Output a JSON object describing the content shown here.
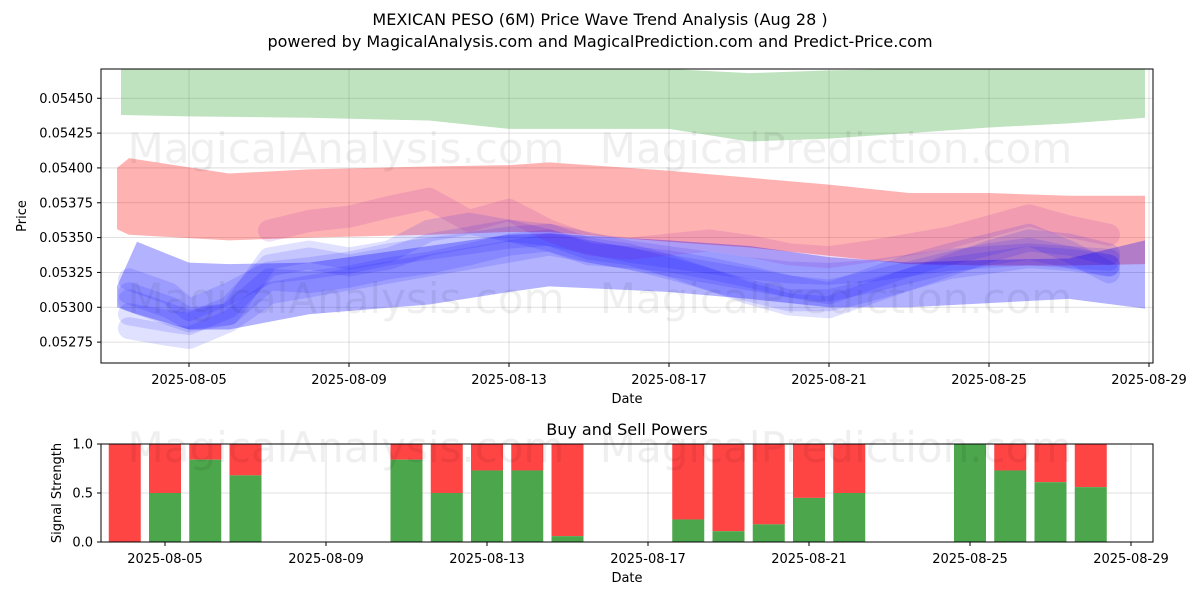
{
  "chart_data": [
    {
      "type": "area",
      "title": "MEXICAN PESO (6M) Price Wave Trend Analysis (Aug 28 )",
      "subtitle": "powered by MagicalAnalysis.com and MagicalPrediction.com and Predict-Price.com",
      "xlabel": "Date",
      "ylabel": "Price",
      "x_ticks": [
        "2025-08-05",
        "2025-08-09",
        "2025-08-13",
        "2025-08-17",
        "2025-08-21",
        "2025-08-25",
        "2025-08-29"
      ],
      "y_ticks": [
        "0.05275",
        "0.05300",
        "0.05325",
        "0.05350",
        "0.05375",
        "0.05400",
        "0.05425",
        "0.05450"
      ],
      "ylim": [
        0.0526,
        0.05471
      ],
      "x_start": "2025-08-03",
      "grid": true,
      "bands": [
        {
          "name": "upper band",
          "color": "#2ca02c",
          "x": [
            3.3,
            5,
            8,
            11,
            13,
            15,
            17,
            19,
            21,
            23,
            25,
            27,
            28.9
          ],
          "upper": [
            54.71,
            54.71,
            54.71,
            54.71,
            54.71,
            54.71,
            54.71,
            54.68,
            54.7,
            54.71,
            54.71,
            54.71,
            54.71
          ],
          "lower": [
            54.38,
            54.37,
            54.36,
            54.34,
            54.28,
            54.28,
            54.28,
            54.19,
            54.21,
            54.25,
            54.29,
            54.32,
            54.36
          ]
        },
        {
          "name": "middle band",
          "color": "#ff0000",
          "x": [
            3.2,
            3.5,
            6,
            8,
            11,
            13,
            14,
            17,
            19,
            21,
            23,
            25,
            27,
            28.9
          ],
          "upper": [
            54.0,
            54.07,
            53.96,
            53.99,
            54.01,
            54.02,
            54.04,
            53.98,
            53.93,
            53.88,
            53.82,
            53.82,
            53.8,
            53.8
          ],
          "lower": [
            53.56,
            53.52,
            53.48,
            53.5,
            53.52,
            53.54,
            53.54,
            53.47,
            53.43,
            53.37,
            53.31,
            53.3,
            53.3,
            53.31
          ]
        },
        {
          "name": "lower band",
          "color": "#0000ff",
          "x": [
            3.2,
            3.7,
            5,
            6,
            8,
            11,
            13,
            14,
            17,
            19,
            21,
            23,
            25,
            27,
            28.9
          ],
          "upper": [
            53.15,
            53.47,
            53.32,
            53.31,
            53.32,
            53.44,
            53.52,
            53.53,
            53.48,
            53.44,
            53.36,
            53.32,
            53.34,
            53.35,
            53.48
          ],
          "lower": [
            53.0,
            52.95,
            52.84,
            52.84,
            52.95,
            53.02,
            53.11,
            53.15,
            53.11,
            53.06,
            53.0,
            53.0,
            53.03,
            53.06,
            52.99
          ]
        }
      ],
      "waves": [
        {
          "color": "#0000ff",
          "x": [
            3.5,
            4.5,
            5,
            6,
            7,
            8,
            9,
            10,
            11,
            12,
            13,
            14,
            15,
            16,
            17,
            18,
            19,
            20,
            21,
            22,
            23,
            24,
            25,
            26,
            27,
            28
          ],
          "y": [
            53.05,
            52.95,
            52.9,
            52.95,
            53.2,
            53.18,
            53.22,
            53.28,
            53.32,
            53.38,
            53.45,
            53.48,
            53.38,
            53.36,
            53.33,
            53.28,
            53.22,
            53.15,
            53.12,
            53.18,
            53.25,
            53.32,
            53.38,
            53.42,
            53.36,
            53.3
          ]
        },
        {
          "color": "#0000ff",
          "x": [
            3.5,
            4.5,
            5,
            6,
            7,
            8,
            9,
            10,
            11,
            12,
            13,
            14,
            15,
            16,
            17,
            18,
            19,
            20,
            21,
            22,
            23,
            24,
            25,
            26,
            27,
            28
          ],
          "y": [
            53.1,
            53.0,
            52.92,
            52.95,
            53.35,
            53.4,
            53.35,
            53.4,
            53.55,
            53.6,
            53.55,
            53.48,
            53.4,
            53.35,
            53.3,
            53.25,
            53.2,
            53.15,
            53.1,
            53.2,
            53.3,
            53.38,
            53.45,
            53.52,
            53.4,
            53.25
          ]
        },
        {
          "color": "#0000ff",
          "x": [
            3.5,
            4.5,
            5,
            6,
            7,
            8,
            9,
            10,
            11,
            12,
            13,
            14,
            15,
            16,
            17,
            18,
            19,
            20,
            21,
            22,
            23,
            24,
            25,
            26,
            27,
            28
          ],
          "y": [
            52.95,
            52.9,
            52.88,
            53.0,
            53.3,
            53.35,
            53.3,
            53.35,
            53.45,
            53.5,
            53.55,
            53.52,
            53.42,
            53.38,
            53.3,
            53.2,
            53.1,
            53.02,
            53.0,
            53.1,
            53.2,
            53.3,
            53.4,
            53.48,
            53.45,
            53.38
          ]
        },
        {
          "color": "#0000ff",
          "x": [
            3.5,
            4.5,
            5,
            6,
            7,
            8,
            9,
            10,
            11,
            12,
            13,
            14,
            15,
            16,
            17,
            18,
            19,
            20,
            21,
            22,
            23,
            24,
            25,
            26,
            27,
            28
          ],
          "y": [
            53.2,
            53.1,
            52.98,
            53.1,
            53.25,
            53.28,
            53.32,
            53.38,
            53.42,
            53.46,
            53.5,
            53.52,
            53.46,
            53.4,
            53.36,
            53.32,
            53.28,
            53.25,
            53.24,
            53.26,
            53.3,
            53.34,
            53.36,
            53.38,
            53.36,
            53.34
          ]
        },
        {
          "color": "#0000ff",
          "x": [
            3.5,
            4.5,
            5,
            6,
            7,
            8,
            9,
            10,
            11,
            12,
            13,
            14,
            15,
            16,
            17,
            18,
            19,
            20,
            21,
            22,
            23,
            24,
            25,
            26,
            27,
            28
          ],
          "y": [
            52.85,
            52.8,
            52.78,
            52.9,
            53.1,
            53.15,
            53.2,
            53.25,
            53.3,
            53.35,
            53.4,
            53.45,
            53.4,
            53.35,
            53.28,
            53.2,
            53.12,
            53.05,
            53.05,
            53.12,
            53.2,
            53.28,
            53.32,
            53.36,
            53.34,
            53.3
          ]
        },
        {
          "color": "#8800aa",
          "x": [
            7,
            8,
            9,
            10,
            11,
            12,
            13,
            14,
            15,
            16,
            17,
            18,
            19,
            20,
            21,
            22,
            23,
            24,
            25,
            26,
            27,
            28
          ],
          "y": [
            53.55,
            53.62,
            53.65,
            53.72,
            53.78,
            53.62,
            53.7,
            53.55,
            53.45,
            53.42,
            53.45,
            53.48,
            53.44,
            53.38,
            53.36,
            53.4,
            53.45,
            53.5,
            53.58,
            53.66,
            53.58,
            53.52
          ]
        }
      ],
      "points": []
    },
    {
      "type": "bar",
      "title": "Buy and Sell Powers",
      "xlabel": "Date",
      "ylabel": "Signal Strength",
      "x_ticks": [
        "2025-08-05",
        "2025-08-09",
        "2025-08-13",
        "2025-08-17",
        "2025-08-21",
        "2025-08-25",
        "2025-08-29"
      ],
      "y_ticks": [
        "0.0",
        "0.5",
        "1.0"
      ],
      "ylim": [
        0,
        1
      ],
      "grid": true,
      "series": [
        {
          "name": "Buy",
          "color": "#4ca64c"
        },
        {
          "name": "Sell",
          "color": "#ff4444"
        }
      ],
      "categories": [
        "2025-08-04",
        "2025-08-05",
        "2025-08-06",
        "2025-08-07",
        "2025-08-11",
        "2025-08-12",
        "2025-08-13",
        "2025-08-14",
        "2025-08-15",
        "2025-08-18",
        "2025-08-19",
        "2025-08-20",
        "2025-08-21",
        "2025-08-22",
        "2025-08-25",
        "2025-08-26",
        "2025-08-27",
        "2025-08-28"
      ],
      "day_offsets": [
        4,
        5,
        6,
        7,
        11,
        12,
        13,
        14,
        15,
        18,
        19,
        20,
        21,
        22,
        25,
        26,
        27,
        28
      ],
      "buy_values": [
        0.0,
        0.5,
        0.84,
        0.68,
        0.84,
        0.5,
        0.73,
        0.73,
        0.06,
        0.23,
        0.11,
        0.18,
        0.45,
        0.5,
        1.0,
        0.73,
        0.61,
        0.56
      ]
    }
  ],
  "watermarks": [
    "MagicalAnalysis.com",
    "MagicalPrediction.com"
  ]
}
